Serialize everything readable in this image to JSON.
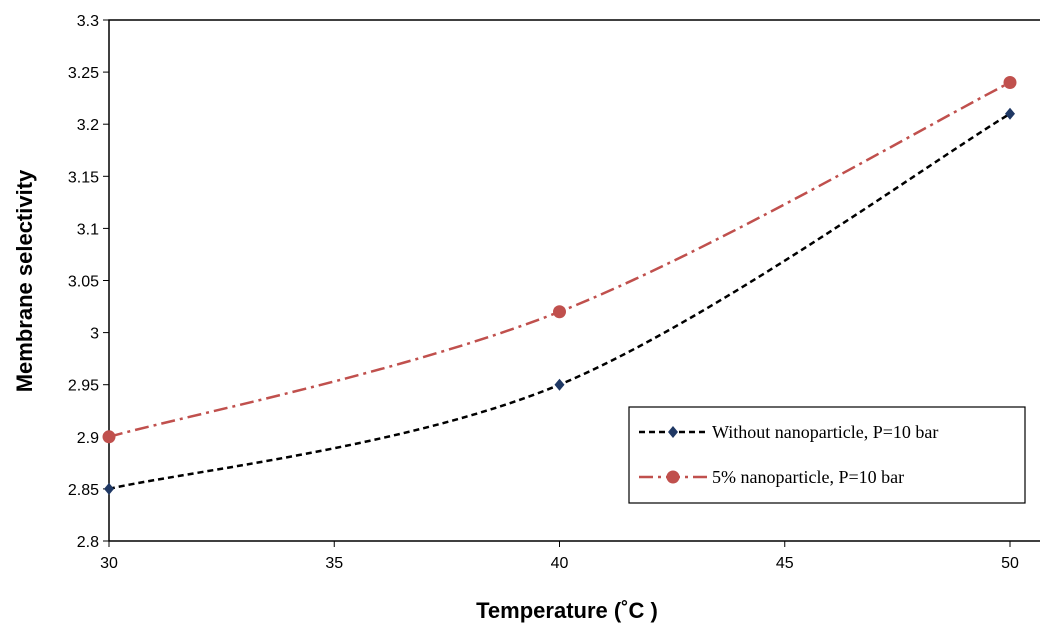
{
  "chart_data": {
    "type": "line",
    "xlabel": "Temperature (˚C )",
    "ylabel": "Membrane selectivity",
    "xlim": [
      30,
      50
    ],
    "ylim": [
      2.8,
      3.3
    ],
    "xticks": [
      "30",
      "35",
      "40",
      "45",
      "50"
    ],
    "yticks": [
      "2.8",
      "2.85",
      "2.9",
      "2.95",
      "3",
      "3.05",
      "3.1",
      "3.15",
      "3.2",
      "3.25",
      "3.3"
    ],
    "grid": false,
    "legend_position": "bottom-right",
    "series": [
      {
        "name": "Without nanoparticle, P=10 bar",
        "x": [
          30,
          40,
          50
        ],
        "values": [
          2.85,
          2.95,
          3.21
        ],
        "color": "#000000",
        "marker_color": "#1f3864",
        "marker": "diamond",
        "line_style": "dashed"
      },
      {
        "name": "5% nanoparticle, P=10 bar",
        "x": [
          30,
          40,
          50
        ],
        "values": [
          2.9,
          3.02,
          3.24
        ],
        "color": "#c0504d",
        "marker_color": "#c0504d",
        "marker": "circle",
        "line_style": "dash-dot"
      }
    ]
  }
}
